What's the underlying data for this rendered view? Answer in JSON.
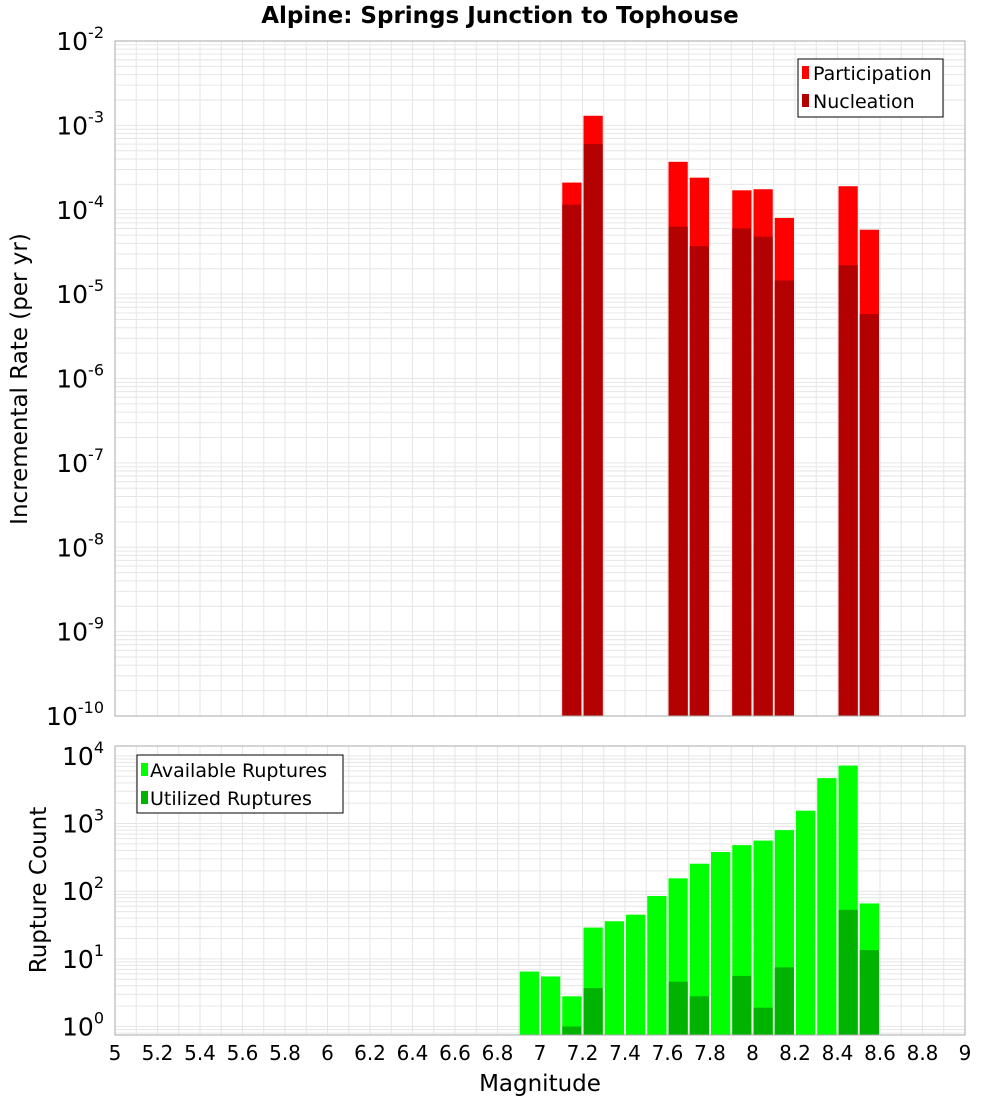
{
  "title": "Alpine: Springs Junction to Tophouse",
  "colors": {
    "participation": "#ff0000",
    "nucleation": "#b30000",
    "available": "#00ff00",
    "utilized": "#00b300",
    "grid": "#e6e6e6",
    "frame": "#aaaaaa"
  },
  "chart_data": [
    {
      "type": "bar",
      "panel": "top",
      "title": "Alpine: Springs Junction to Tophouse",
      "xlabel": "",
      "ylabel": "Incremental Rate (per yr)",
      "yscale": "log",
      "xlim": [
        5,
        9
      ],
      "ylim": [
        1e-10,
        0.01
      ],
      "bin_width": 0.1,
      "y_ticks": [
        {
          "base": "10",
          "exp": "-10",
          "value": 1e-10
        },
        {
          "base": "10",
          "exp": "-9",
          "value": 1e-09
        },
        {
          "base": "10",
          "exp": "-8",
          "value": 1e-08
        },
        {
          "base": "10",
          "exp": "-7",
          "value": 1e-07
        },
        {
          "base": "10",
          "exp": "-6",
          "value": 1e-06
        },
        {
          "base": "10",
          "exp": "-5",
          "value": 1e-05
        },
        {
          "base": "10",
          "exp": "-4",
          "value": 0.0001
        },
        {
          "base": "10",
          "exp": "-3",
          "value": 0.001
        },
        {
          "base": "10",
          "exp": "-2",
          "value": 0.01
        }
      ],
      "legend": "top-right",
      "series": [
        {
          "name": "Participation",
          "x": [
            7.15,
            7.25,
            7.65,
            7.75,
            7.95,
            8.05,
            8.15,
            8.45,
            8.55
          ],
          "values": [
            0.00021,
            0.0013,
            0.00037,
            0.00024,
            0.00017,
            0.000175,
            8e-05,
            0.00019,
            5.8e-05
          ]
        },
        {
          "name": "Nucleation",
          "x": [
            7.15,
            7.25,
            7.65,
            7.75,
            7.95,
            8.05,
            8.15,
            8.45,
            8.55
          ],
          "values": [
            0.000115,
            0.0006,
            6.3e-05,
            3.7e-05,
            6e-05,
            4.8e-05,
            1.45e-05,
            2.2e-05,
            5.8e-06
          ]
        }
      ]
    },
    {
      "type": "bar",
      "panel": "bottom",
      "xlabel": "Magnitude",
      "ylabel": "Rupture Count",
      "yscale": "log",
      "xlim": [
        5,
        9
      ],
      "ylim": [
        0.75,
        14000.0
      ],
      "bin_width": 0.1,
      "x_ticks": [
        "5",
        "5.2",
        "5.4",
        "5.6",
        "5.8",
        "6",
        "6.2",
        "6.4",
        "6.6",
        "6.8",
        "7",
        "7.2",
        "7.4",
        "7.6",
        "7.8",
        "8",
        "8.2",
        "8.4",
        "8.6",
        "8.8",
        "9"
      ],
      "y_ticks": [
        {
          "base": "10",
          "exp": "0",
          "value": 1
        },
        {
          "base": "10",
          "exp": "1",
          "value": 10
        },
        {
          "base": "10",
          "exp": "2",
          "value": 100
        },
        {
          "base": "10",
          "exp": "3",
          "value": 1000
        },
        {
          "base": "10",
          "exp": "4",
          "value": 10000
        }
      ],
      "legend": "top-left",
      "series": [
        {
          "name": "Available Ruptures",
          "x": [
            6.95,
            7.05,
            7.15,
            7.25,
            7.35,
            7.45,
            7.55,
            7.65,
            7.75,
            7.85,
            7.95,
            8.05,
            8.15,
            8.25,
            8.35,
            8.45,
            8.55
          ],
          "values": [
            6.5,
            5.5,
            2.8,
            29,
            36,
            45,
            85,
            155,
            255,
            380,
            480,
            560,
            800,
            1550,
            4700,
            7200,
            66
          ]
        },
        {
          "name": "Utilized Ruptures",
          "x": [
            7.15,
            7.25,
            7.65,
            7.75,
            7.95,
            8.05,
            8.15,
            8.45,
            8.55
          ],
          "values": [
            1,
            3.7,
            4.6,
            2.8,
            5.6,
            1.9,
            7.5,
            53,
            13.5
          ]
        }
      ]
    }
  ]
}
